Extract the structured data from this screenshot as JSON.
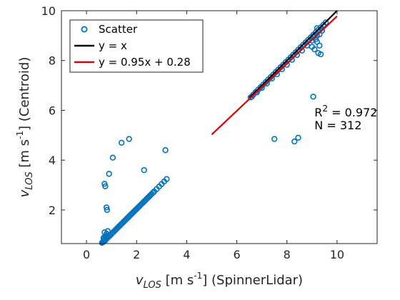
{
  "chart_data": {
    "type": "scatter",
    "xlabel": {
      "base": "v",
      "sub": "LOS",
      "units_pre": " [m s",
      "units_sup": "-1",
      "units_post": "] (SpinnerLidar)"
    },
    "ylabel": {
      "base": "v",
      "sub": "LOS",
      "units_pre": " [m s",
      "units_sup": "-1",
      "units_post": "] (Centroid)"
    },
    "xlim": [
      -1,
      11.6
    ],
    "ylim": [
      0.65,
      10
    ],
    "xticks": [
      0,
      2,
      4,
      6,
      8,
      10
    ],
    "yticks": [
      2,
      4,
      6,
      8,
      10
    ],
    "grid": false,
    "legend": {
      "position": "top-left",
      "entries": [
        {
          "label": "Scatter",
          "kind": "marker",
          "color": "#0072BD"
        },
        {
          "label": "y = x",
          "kind": "line",
          "color": "#000000"
        },
        {
          "label": "y = 0.95x + 0.28",
          "kind": "line",
          "color": "#D50000"
        }
      ]
    },
    "annotation": {
      "r2_base": "R",
      "r2_sup": "2",
      "r2_value": " = 0.972",
      "n_text": "N = 312",
      "anchor": [
        9.1,
        5.75
      ]
    },
    "series": [
      {
        "name": "Scatter",
        "kind": "scatter",
        "color": "#0072BD",
        "x": [
          0.62,
          0.65,
          0.68,
          0.7,
          0.72,
          0.75,
          0.78,
          0.8,
          0.85,
          0.9,
          0.95,
          1.0,
          1.05,
          1.1,
          1.15,
          1.2,
          1.25,
          1.3,
          1.35,
          1.4,
          1.45,
          1.5,
          1.55,
          1.6,
          1.65,
          1.7,
          1.75,
          1.8,
          1.85,
          1.9,
          1.95,
          2.0,
          2.05,
          2.1,
          2.15,
          2.2,
          2.25,
          2.3,
          2.35,
          2.4,
          2.45,
          2.5,
          2.55,
          2.6,
          2.65,
          2.7,
          2.8,
          2.9,
          3.0,
          3.1,
          3.2,
          0.7,
          0.75,
          0.78,
          0.8,
          0.95,
          0.75,
          0.8,
          0.85,
          0.72,
          0.65,
          0.7,
          0.68,
          0.72,
          0.75,
          0.8,
          0.82,
          0.9,
          1.05,
          1.4,
          1.7,
          2.3,
          3.15,
          6.55,
          6.65,
          6.75,
          6.85,
          6.95,
          7.05,
          7.15,
          7.25,
          7.35,
          7.45,
          7.55,
          7.65,
          7.75,
          7.85,
          7.95,
          8.05,
          8.15,
          8.25,
          8.35,
          8.45,
          8.55,
          8.65,
          8.75,
          8.85,
          8.95,
          9.05,
          9.15,
          9.25,
          9.35,
          9.45,
          9.55,
          6.6,
          6.8,
          7.0,
          7.2,
          7.4,
          7.6,
          7.8,
          8.0,
          8.2,
          8.4,
          8.6,
          8.8,
          9.0,
          9.2,
          9.4,
          9.0,
          9.1,
          9.2,
          9.3,
          9.25,
          9.35,
          9.15,
          9.05,
          9.2,
          9.3,
          9.05,
          7.5,
          8.3,
          8.45
        ],
        "y": [
          0.68,
          0.7,
          0.72,
          0.74,
          0.76,
          0.79,
          0.82,
          0.84,
          0.89,
          0.94,
          0.99,
          1.04,
          1.09,
          1.14,
          1.19,
          1.24,
          1.29,
          1.34,
          1.39,
          1.44,
          1.49,
          1.54,
          1.59,
          1.64,
          1.69,
          1.74,
          1.79,
          1.84,
          1.89,
          1.94,
          1.99,
          2.04,
          2.09,
          2.14,
          2.19,
          2.24,
          2.29,
          2.34,
          2.39,
          2.44,
          2.49,
          2.54,
          2.59,
          2.64,
          2.69,
          2.74,
          2.84,
          2.94,
          3.04,
          3.14,
          3.24,
          0.75,
          0.78,
          0.85,
          0.9,
          1.0,
          0.95,
          1.05,
          1.15,
          1.1,
          0.72,
          0.82,
          0.88,
          3.05,
          2.95,
          2.1,
          2.0,
          3.45,
          4.1,
          4.7,
          4.85,
          3.6,
          4.4,
          6.52,
          6.62,
          6.73,
          6.83,
          6.93,
          7.03,
          7.13,
          7.23,
          7.33,
          7.43,
          7.53,
          7.63,
          7.73,
          7.83,
          7.93,
          8.03,
          8.13,
          8.23,
          8.33,
          8.43,
          8.53,
          8.63,
          8.73,
          8.83,
          8.93,
          9.03,
          9.13,
          9.23,
          9.33,
          9.43,
          9.53,
          6.55,
          6.72,
          6.9,
          7.08,
          7.28,
          7.45,
          7.65,
          7.83,
          8.03,
          8.22,
          8.4,
          8.6,
          8.8,
          9.0,
          9.2,
          8.55,
          8.45,
          8.75,
          8.6,
          8.3,
          8.25,
          8.85,
          8.95,
          9.3,
          9.05,
          6.55,
          4.85,
          4.75,
          4.9
        ]
      },
      {
        "name": "y = x",
        "kind": "line",
        "color": "#000000",
        "x": [
          6.5,
          10.0
        ],
        "y": [
          6.5,
          10.0
        ]
      },
      {
        "name": "y = 0.95x + 0.28",
        "kind": "line",
        "color": "#D50000",
        "x": [
          5.0,
          10.0
        ],
        "y": [
          5.03,
          9.78
        ]
      }
    ]
  }
}
